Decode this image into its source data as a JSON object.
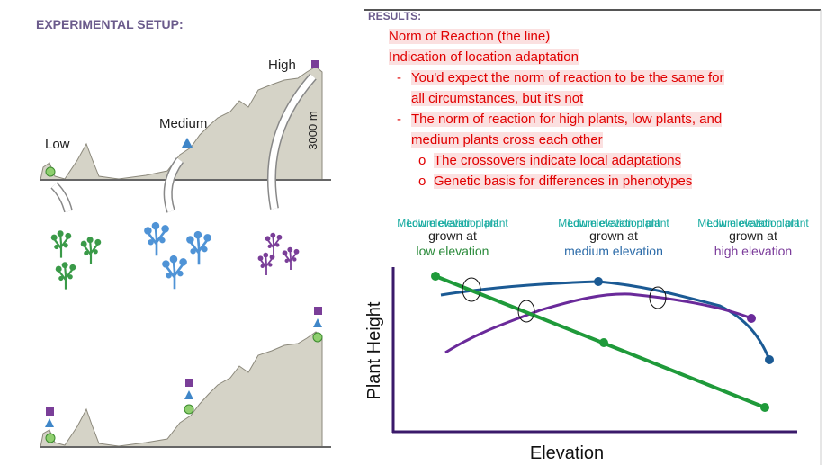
{
  "setup": {
    "title": "EXPERIMENTAL SETUP:",
    "low": "Low",
    "medium": "Medium",
    "high": "High",
    "scale": "3000 m"
  },
  "results": {
    "title": "RESULTS:",
    "lines": [
      "Norm of Reaction (the line)",
      "Indication of location adaptation"
    ],
    "bullets": [
      {
        "marker": "-",
        "lines": [
          "You'd expect the norm of reaction to be the same for",
          "all circumstances, but it's not"
        ]
      },
      {
        "marker": "-",
        "lines": [
          "The norm of reaction for high plants, low plants, and",
          "medium plants cross each other"
        ],
        "sub": [
          {
            "marker": "o",
            "text": "The crossovers indicate local adaptations"
          },
          {
            "marker": "o",
            "text": "Genetic basis for differences in phenotypes"
          }
        ]
      }
    ]
  },
  "graph": {
    "columns": [
      {
        "overlay": [
          "Low elevation plant",
          "Medium elevation plant"
        ],
        "grown": "grown at",
        "elevation": "low elevation"
      },
      {
        "overlay": [
          "Medium elevation plant",
          "Low elevation plant"
        ],
        "grown": "grown at",
        "elevation": "medium elevation"
      },
      {
        "overlay": [
          "Medium elevation plant",
          "Low elevation plant"
        ],
        "grown": "grown at",
        "elevation": "high elevation"
      }
    ],
    "y_label": "Plant Height",
    "x_label": "Elevation"
  }
}
